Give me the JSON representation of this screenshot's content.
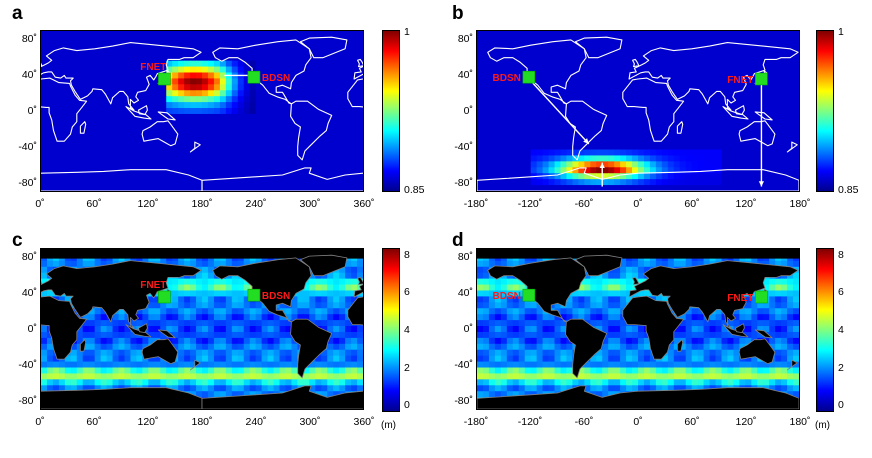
{
  "panels": [
    {
      "id": "a",
      "label": "a",
      "map_type": "probability-heatmap",
      "x_ticks": [
        "0˚",
        "60˚",
        "120˚",
        "180˚",
        "240˚",
        "300˚",
        "360˚"
      ],
      "y_ticks": [
        "80˚",
        "40˚",
        "0˚",
        "-40˚",
        "-80˚"
      ],
      "colorbar_ticks": [
        "1",
        "0.85"
      ],
      "unit": "",
      "stations": [
        {
          "name": "FNET",
          "lon": 138,
          "lat": 36
        },
        {
          "name": "BDSN",
          "lon": 238,
          "lat": 38
        }
      ]
    },
    {
      "id": "b",
      "label": "b",
      "map_type": "probability-heatmap",
      "x_ticks": [
        "-180˚",
        "-120˚",
        "-60˚",
        "0˚",
        "60˚",
        "120˚",
        "180˚"
      ],
      "y_ticks": [
        "80˚",
        "40˚",
        "0˚",
        "-40˚",
        "-80˚"
      ],
      "colorbar_ticks": [
        "1",
        "0.85"
      ],
      "unit": "",
      "stations": [
        {
          "name": "BDSN",
          "lon": -122,
          "lat": 38
        },
        {
          "name": "FNET",
          "lon": 138,
          "lat": 36
        }
      ]
    },
    {
      "id": "c",
      "label": "c",
      "map_type": "wave-height",
      "x_ticks": [
        "0˚",
        "60˚",
        "120˚",
        "180˚",
        "240˚",
        "300˚",
        "360˚"
      ],
      "y_ticks": [
        "80˚",
        "40˚",
        "0˚",
        "-40˚",
        "-80˚"
      ],
      "colorbar_ticks": [
        "8",
        "6",
        "4",
        "2",
        "0"
      ],
      "unit": "(m)",
      "stations": [
        {
          "name": "FNET",
          "lon": 138,
          "lat": 36
        },
        {
          "name": "BDSN",
          "lon": 238,
          "lat": 38
        }
      ]
    },
    {
      "id": "d",
      "label": "d",
      "map_type": "wave-height",
      "x_ticks": [
        "-180˚",
        "-120˚",
        "-60˚",
        "0˚",
        "60˚",
        "120˚",
        "180˚"
      ],
      "y_ticks": [
        "80˚",
        "40˚",
        "0˚",
        "-40˚",
        "-80˚"
      ],
      "colorbar_ticks": [
        "8",
        "6",
        "4",
        "2",
        "0"
      ],
      "unit": "(m)",
      "stations": [
        {
          "name": "BDSN",
          "lon": -122,
          "lat": 38
        },
        {
          "name": "FNET",
          "lon": 138,
          "lat": 36
        }
      ]
    }
  ],
  "colors": {
    "station_marker": "#22dd22",
    "station_label": "#ff1a1a",
    "ocean_low": "#0a1e9a",
    "land_heatmap_outline": "#ffffff",
    "land_wave": "#000000",
    "land_wave_outline": "#808080"
  }
}
